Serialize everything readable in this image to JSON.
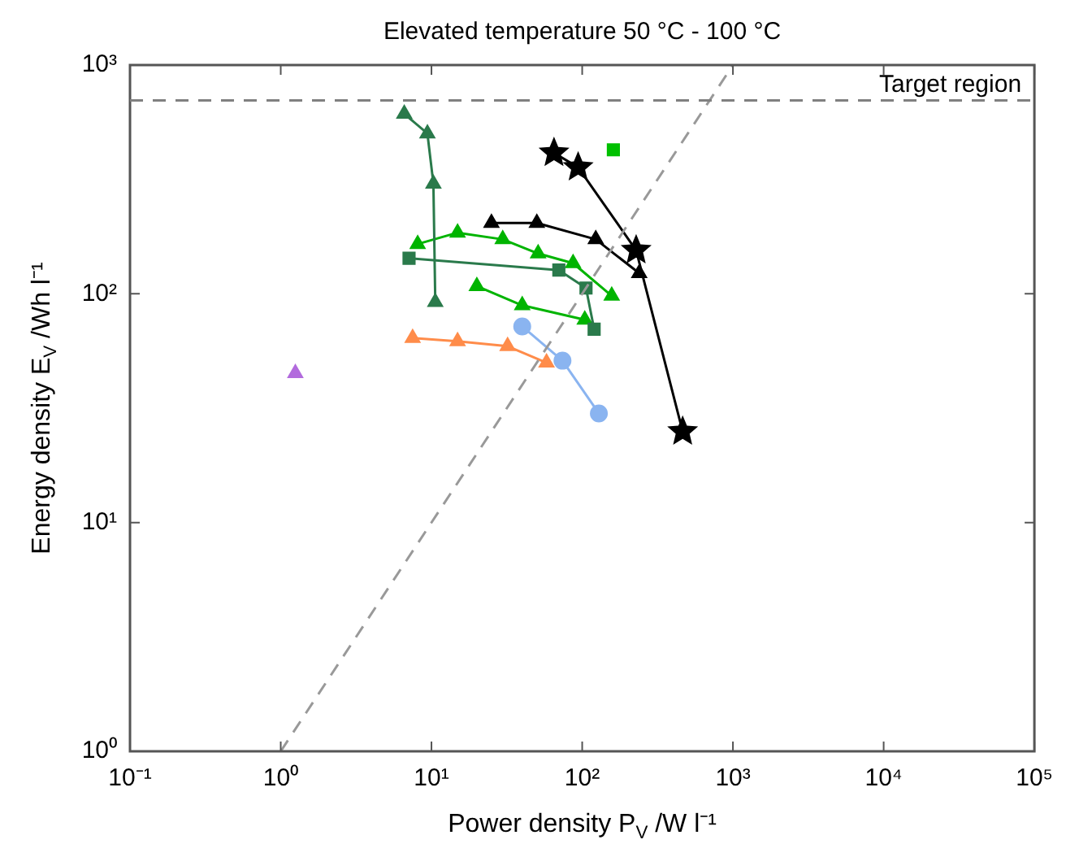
{
  "chart_data": {
    "type": "line",
    "title": "Elevated temperature 50 °C - 100 °C",
    "xlabel": "Power density P$_{V}$ /W l⁻¹",
    "ylabel": "Energy density E$_{V}$ /Wh l⁻¹",
    "log": "xy",
    "xlim": [
      0.1,
      100000
    ],
    "ylim": [
      1,
      1000
    ],
    "xticks": [
      {
        "value": 0.1,
        "label": "10⁻¹"
      },
      {
        "value": 1,
        "label": "10⁰"
      },
      {
        "value": 10,
        "label": "10¹"
      },
      {
        "value": 100,
        "label": "10²"
      },
      {
        "value": 1000,
        "label": "10³"
      },
      {
        "value": 10000,
        "label": "10⁴"
      },
      {
        "value": 100000,
        "label": "10⁵"
      }
    ],
    "yticks": [
      {
        "value": 1,
        "label": "10⁰"
      },
      {
        "value": 10,
        "label": "10¹"
      },
      {
        "value": 100,
        "label": "10²"
      },
      {
        "value": 1000,
        "label": "10³"
      }
    ],
    "grid": false,
    "legend": false,
    "line_style": "solid",
    "series": [
      {
        "type": "line",
        "color": "#999999",
        "line_style": "dashed",
        "marker": "none",
        "x": [
          1,
          1000
        ],
        "values": [
          1,
          1000
        ]
      },
      {
        "type": "line",
        "color": "#2a7a4b",
        "marker": "triangle",
        "x": [
          6.6,
          9.4,
          10.3,
          10.6
        ],
        "values": [
          612,
          502,
          303,
          92
        ]
      },
      {
        "type": "line",
        "color": "#2a7a4b",
        "marker": "square",
        "x": [
          7.1,
          70,
          106,
          120
        ],
        "values": [
          143,
          127,
          106,
          70
        ]
      },
      {
        "type": "line",
        "color": "#00b400",
        "marker": "triangle",
        "x": [
          8.1,
          14.9,
          29.7,
          51,
          87,
          157
        ],
        "values": [
          165,
          185,
          173,
          150,
          136,
          98
        ]
      },
      {
        "type": "line",
        "color": "#00b400",
        "marker": "triangle",
        "x": [
          20,
          40,
          104
        ],
        "values": [
          108,
          89,
          77
        ]
      },
      {
        "type": "scatter",
        "color": "#00c000",
        "marker": "square",
        "x": [
          161
        ],
        "values": [
          426
        ]
      },
      {
        "type": "line",
        "color": "#000000",
        "marker": "star",
        "x": [
          65,
          94,
          228,
          464
        ],
        "values": [
          413,
          357,
          155,
          25
        ]
      },
      {
        "type": "line",
        "color": "#000000",
        "marker": "triangle",
        "x": [
          25,
          50,
          123,
          239
        ],
        "values": [
          204,
          204,
          173,
          123
        ]
      },
      {
        "type": "line",
        "color": "#ff8c4a",
        "marker": "triangle",
        "x": [
          7.5,
          14.9,
          32,
          58
        ],
        "values": [
          64,
          62,
          59,
          50
        ]
      },
      {
        "type": "line",
        "color": "#8ab4f0",
        "marker": "circle",
        "x": [
          40,
          74,
          129
        ],
        "values": [
          72,
          51,
          30
        ]
      },
      {
        "type": "scatter",
        "color": "#b26bdd",
        "marker": "triangle",
        "x": [
          1.25
        ],
        "values": [
          45
        ]
      }
    ],
    "ref_lines": [
      {
        "axis": "y",
        "value": 700,
        "label": "Target region",
        "color": "#808080",
        "line_style": "dashed"
      }
    ]
  }
}
